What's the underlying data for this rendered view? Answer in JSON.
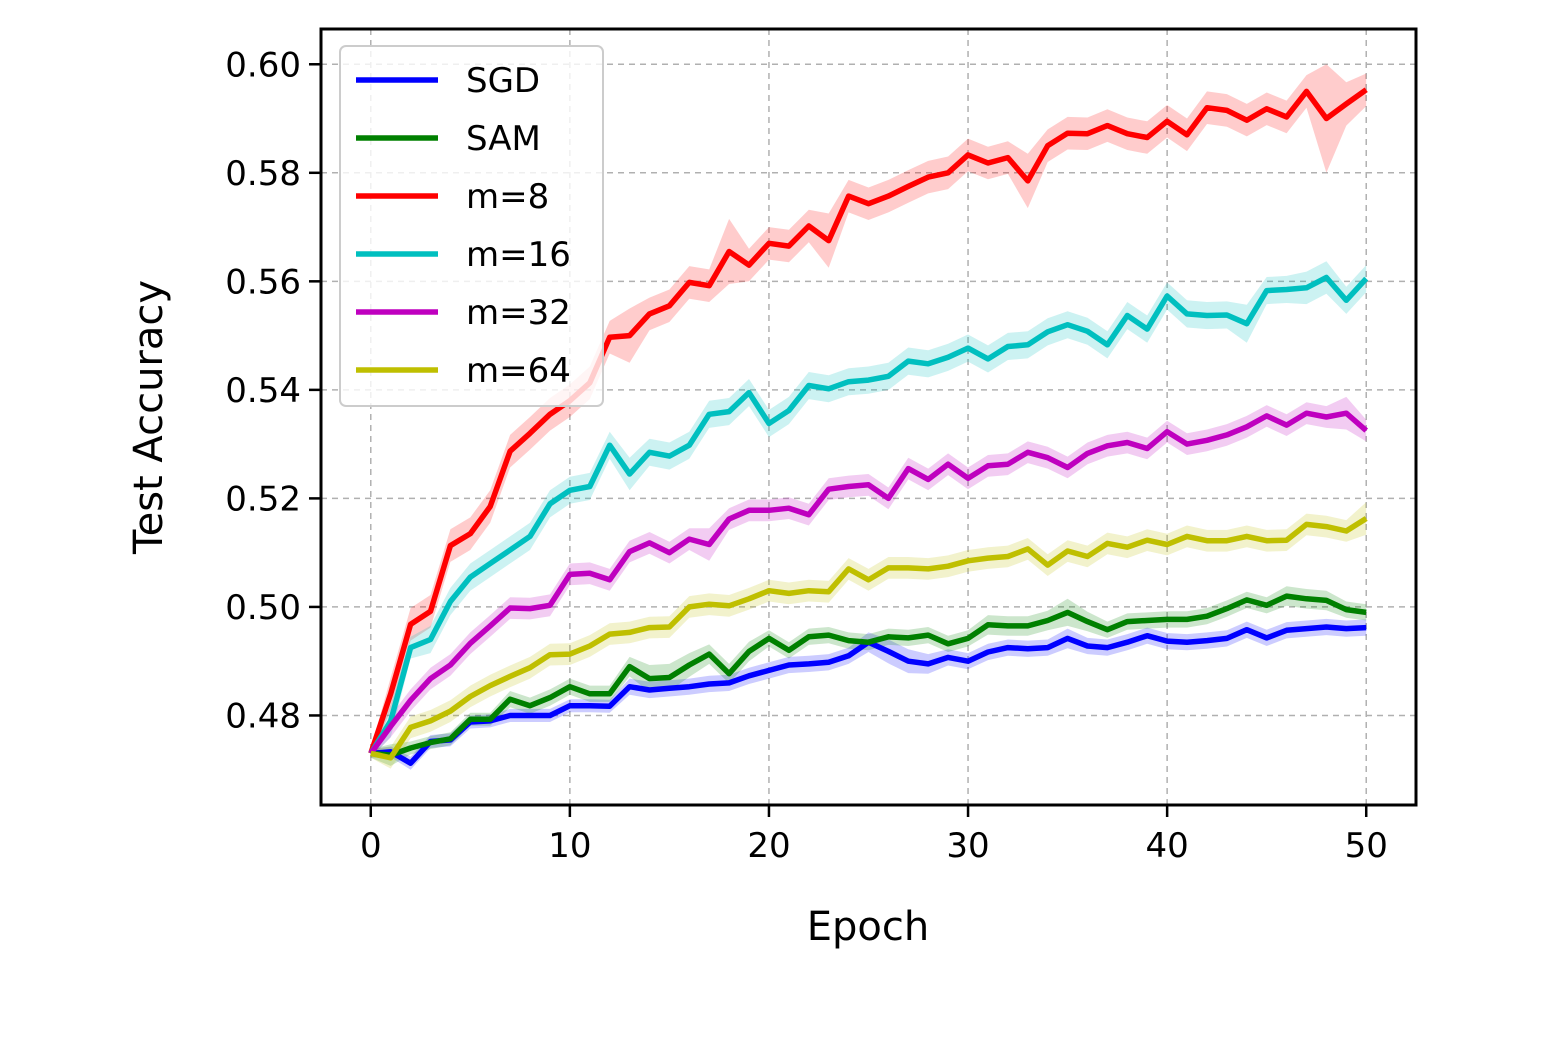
{
  "chart_data": {
    "type": "line",
    "xlabel": "Epoch",
    "ylabel": "Test Accuracy",
    "xlim": [
      -2.5,
      52.5
    ],
    "ylim": [
      0.4635,
      0.6065
    ],
    "xticks": [
      0,
      10,
      20,
      30,
      40,
      50
    ],
    "xtick_labels": [
      "0",
      "10",
      "20",
      "30",
      "40",
      "50"
    ],
    "yticks": [
      0.48,
      0.5,
      0.52,
      0.54,
      0.56,
      0.58,
      0.6
    ],
    "ytick_labels": [
      "0.48",
      "0.50",
      "0.52",
      "0.54",
      "0.56",
      "0.58",
      "0.60"
    ],
    "grid": true,
    "legend_position": "upper-left",
    "x": [
      0,
      1,
      2,
      3,
      4,
      5,
      6,
      7,
      8,
      9,
      10,
      11,
      12,
      13,
      14,
      15,
      16,
      17,
      18,
      19,
      20,
      21,
      22,
      23,
      24,
      25,
      26,
      27,
      28,
      29,
      30,
      31,
      32,
      33,
      34,
      35,
      36,
      37,
      38,
      39,
      40,
      41,
      42,
      43,
      44,
      45,
      46,
      47,
      48,
      49,
      50
    ],
    "series": [
      {
        "name": "SGD",
        "color": "#0000ff",
        "values": [
          0.473,
          0.4733,
          0.4712,
          0.4752,
          0.4755,
          0.4788,
          0.479,
          0.48,
          0.48,
          0.48,
          0.4818,
          0.4818,
          0.4817,
          0.4853,
          0.4847,
          0.485,
          0.4853,
          0.4858,
          0.486,
          0.4873,
          0.4883,
          0.4893,
          0.4895,
          0.4898,
          0.491,
          0.4935,
          0.4918,
          0.49,
          0.4895,
          0.4907,
          0.49,
          0.4917,
          0.4925,
          0.4923,
          0.4925,
          0.4942,
          0.4928,
          0.4925,
          0.4935,
          0.4947,
          0.4937,
          0.4935,
          0.4938,
          0.4942,
          0.4958,
          0.4943,
          0.4957,
          0.496,
          0.4963,
          0.496,
          0.4962
        ],
        "band": [
          0.0008,
          0.001,
          0.0012,
          0.0012,
          0.0012,
          0.0012,
          0.0012,
          0.0012,
          0.0012,
          0.0012,
          0.0012,
          0.0012,
          0.0012,
          0.0015,
          0.0015,
          0.0015,
          0.0015,
          0.0015,
          0.0015,
          0.0015,
          0.0015,
          0.0015,
          0.0015,
          0.0015,
          0.0015,
          0.0018,
          0.0022,
          0.0022,
          0.0018,
          0.0015,
          0.0015,
          0.0015,
          0.0015,
          0.0015,
          0.0015,
          0.0018,
          0.0015,
          0.0015,
          0.0015,
          0.0015,
          0.0015,
          0.0015,
          0.0015,
          0.0015,
          0.0015,
          0.0015,
          0.0015,
          0.0015,
          0.0015,
          0.0015,
          0.0015
        ]
      },
      {
        "name": "SAM",
        "color": "#008000",
        "values": [
          0.473,
          0.4727,
          0.474,
          0.475,
          0.4757,
          0.4793,
          0.4793,
          0.483,
          0.4818,
          0.4833,
          0.4853,
          0.484,
          0.484,
          0.489,
          0.4868,
          0.487,
          0.4893,
          0.4913,
          0.4877,
          0.4918,
          0.4942,
          0.492,
          0.4945,
          0.4948,
          0.4938,
          0.4935,
          0.4945,
          0.4943,
          0.4948,
          0.4932,
          0.4942,
          0.4967,
          0.4965,
          0.4965,
          0.4975,
          0.499,
          0.4973,
          0.4958,
          0.4973,
          0.4975,
          0.4977,
          0.4977,
          0.4983,
          0.4997,
          0.5013,
          0.5003,
          0.502,
          0.5015,
          0.5012,
          0.4995,
          0.499
        ],
        "band": [
          0.0008,
          0.002,
          0.0012,
          0.0012,
          0.0012,
          0.0012,
          0.0012,
          0.0015,
          0.0015,
          0.0015,
          0.0015,
          0.0015,
          0.0015,
          0.0018,
          0.0025,
          0.0025,
          0.0022,
          0.0018,
          0.0018,
          0.0018,
          0.0015,
          0.0015,
          0.0015,
          0.0015,
          0.0015,
          0.0015,
          0.0015,
          0.0015,
          0.0015,
          0.0015,
          0.0015,
          0.0018,
          0.0018,
          0.0018,
          0.0018,
          0.0025,
          0.0018,
          0.0015,
          0.0015,
          0.0015,
          0.0015,
          0.0015,
          0.0015,
          0.0015,
          0.0015,
          0.0015,
          0.0018,
          0.0018,
          0.0018,
          0.0015,
          0.0015
        ]
      },
      {
        "name": "m=8",
        "color": "#ff0000",
        "values": [
          0.473,
          0.484,
          0.4968,
          0.4992,
          0.5113,
          0.5135,
          0.5185,
          0.5287,
          0.532,
          0.5355,
          0.538,
          0.5413,
          0.5497,
          0.55,
          0.554,
          0.5555,
          0.5598,
          0.5592,
          0.5655,
          0.563,
          0.567,
          0.5665,
          0.5702,
          0.5675,
          0.5757,
          0.5743,
          0.5757,
          0.5775,
          0.5792,
          0.58,
          0.5833,
          0.5818,
          0.5828,
          0.5785,
          0.585,
          0.5873,
          0.5872,
          0.5887,
          0.5872,
          0.5865,
          0.5895,
          0.587,
          0.592,
          0.5915,
          0.5897,
          0.5918,
          0.5903,
          0.595,
          0.59,
          0.5927,
          0.5953
        ],
        "band": [
          0.0008,
          0.003,
          0.003,
          0.003,
          0.003,
          0.003,
          0.003,
          0.003,
          0.003,
          0.003,
          0.003,
          0.003,
          0.003,
          0.005,
          0.003,
          0.003,
          0.003,
          0.003,
          0.006,
          0.003,
          0.003,
          0.003,
          0.003,
          0.005,
          0.003,
          0.003,
          0.003,
          0.003,
          0.003,
          0.003,
          0.003,
          0.003,
          0.003,
          0.005,
          0.003,
          0.003,
          0.003,
          0.003,
          0.003,
          0.003,
          0.003,
          0.003,
          0.003,
          0.003,
          0.003,
          0.003,
          0.003,
          0.003,
          0.01,
          0.004,
          0.003
        ]
      },
      {
        "name": "m=16",
        "color": "#00bfbf",
        "values": [
          0.473,
          0.479,
          0.4925,
          0.494,
          0.501,
          0.5055,
          0.508,
          0.5105,
          0.513,
          0.519,
          0.5215,
          0.5222,
          0.5298,
          0.5245,
          0.5285,
          0.5278,
          0.5298,
          0.5355,
          0.536,
          0.5395,
          0.5338,
          0.5362,
          0.5408,
          0.5402,
          0.5415,
          0.5418,
          0.5425,
          0.5453,
          0.5448,
          0.546,
          0.5477,
          0.5457,
          0.548,
          0.5483,
          0.5507,
          0.552,
          0.5508,
          0.5483,
          0.5537,
          0.5512,
          0.5573,
          0.554,
          0.5537,
          0.5538,
          0.5522,
          0.5583,
          0.5585,
          0.5588,
          0.5607,
          0.5565,
          0.5605
        ],
        "band": [
          0.0008,
          0.003,
          0.002,
          0.0025,
          0.0025,
          0.0025,
          0.0025,
          0.0025,
          0.0025,
          0.0025,
          0.0025,
          0.0025,
          0.0025,
          0.003,
          0.0025,
          0.0025,
          0.0025,
          0.0025,
          0.0025,
          0.0025,
          0.0025,
          0.0025,
          0.0025,
          0.0025,
          0.0025,
          0.0025,
          0.0025,
          0.0025,
          0.0025,
          0.0025,
          0.0025,
          0.0025,
          0.0025,
          0.0025,
          0.0025,
          0.0025,
          0.0025,
          0.0025,
          0.0025,
          0.0025,
          0.0025,
          0.0025,
          0.0025,
          0.0025,
          0.0035,
          0.0025,
          0.0025,
          0.003,
          0.003,
          0.0025,
          0.0025
        ]
      },
      {
        "name": "m=32",
        "color": "#bf00bf",
        "values": [
          0.473,
          0.478,
          0.4828,
          0.4868,
          0.4893,
          0.4933,
          0.4965,
          0.4998,
          0.4997,
          0.5003,
          0.506,
          0.5062,
          0.505,
          0.5102,
          0.5118,
          0.51,
          0.5125,
          0.5115,
          0.5162,
          0.5178,
          0.5178,
          0.5182,
          0.517,
          0.5217,
          0.5222,
          0.5225,
          0.52,
          0.5255,
          0.5235,
          0.5263,
          0.5237,
          0.526,
          0.5263,
          0.5285,
          0.5275,
          0.5257,
          0.5283,
          0.5297,
          0.5303,
          0.5292,
          0.5323,
          0.53,
          0.5307,
          0.5317,
          0.5332,
          0.5352,
          0.5335,
          0.5357,
          0.535,
          0.5357,
          0.5325
        ],
        "band": [
          0.0008,
          0.002,
          0.002,
          0.002,
          0.002,
          0.002,
          0.002,
          0.002,
          0.002,
          0.002,
          0.002,
          0.002,
          0.002,
          0.002,
          0.002,
          0.002,
          0.002,
          0.003,
          0.002,
          0.002,
          0.002,
          0.002,
          0.002,
          0.002,
          0.002,
          0.002,
          0.002,
          0.002,
          0.002,
          0.002,
          0.002,
          0.002,
          0.002,
          0.002,
          0.002,
          0.002,
          0.002,
          0.002,
          0.002,
          0.002,
          0.002,
          0.002,
          0.002,
          0.002,
          0.002,
          0.002,
          0.002,
          0.002,
          0.002,
          0.003,
          0.002
        ]
      },
      {
        "name": "m=64",
        "color": "#bfbf00",
        "values": [
          0.473,
          0.4722,
          0.4778,
          0.479,
          0.4808,
          0.4835,
          0.4855,
          0.4872,
          0.4888,
          0.4912,
          0.4913,
          0.4928,
          0.495,
          0.4953,
          0.4962,
          0.4963,
          0.5,
          0.5005,
          0.5002,
          0.5015,
          0.503,
          0.5025,
          0.503,
          0.5028,
          0.507,
          0.505,
          0.5072,
          0.5072,
          0.507,
          0.5075,
          0.5085,
          0.509,
          0.5093,
          0.5107,
          0.5077,
          0.5103,
          0.5093,
          0.5117,
          0.511,
          0.5123,
          0.5115,
          0.513,
          0.5122,
          0.5122,
          0.513,
          0.5122,
          0.5123,
          0.5152,
          0.5148,
          0.514,
          0.5163
        ],
        "band": [
          0.0008,
          0.002,
          0.002,
          0.002,
          0.002,
          0.002,
          0.002,
          0.002,
          0.002,
          0.002,
          0.002,
          0.002,
          0.002,
          0.002,
          0.002,
          0.002,
          0.002,
          0.002,
          0.002,
          0.002,
          0.002,
          0.002,
          0.002,
          0.002,
          0.002,
          0.002,
          0.002,
          0.002,
          0.002,
          0.002,
          0.002,
          0.002,
          0.002,
          0.002,
          0.002,
          0.002,
          0.002,
          0.002,
          0.002,
          0.002,
          0.002,
          0.002,
          0.002,
          0.002,
          0.002,
          0.002,
          0.002,
          0.002,
          0.002,
          0.002,
          0.003
        ]
      }
    ]
  }
}
